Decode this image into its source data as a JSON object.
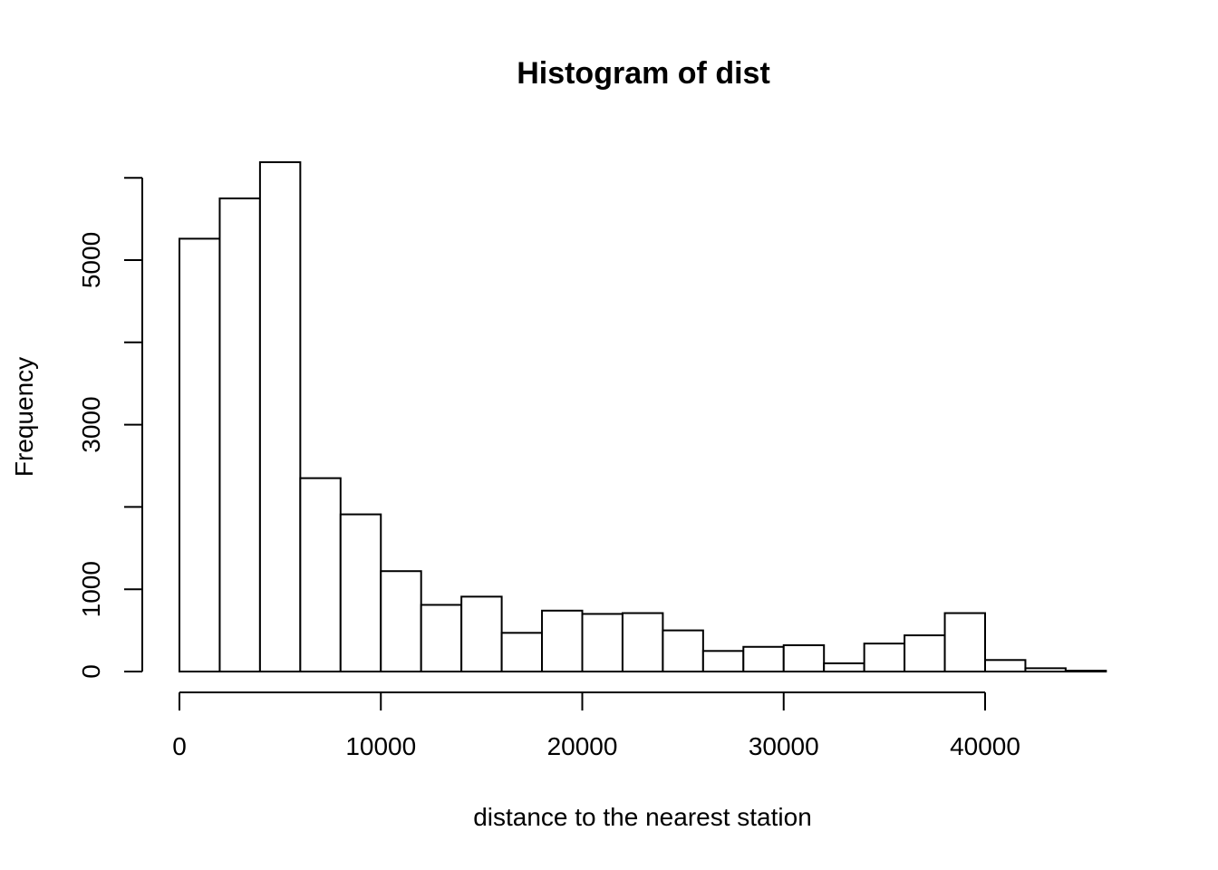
{
  "chart_data": {
    "type": "histogram",
    "title": "Histogram of dist",
    "xlabel": "distance to the nearest station",
    "ylabel": "Frequency",
    "bin_width": 2000,
    "bins": [
      {
        "start": 0,
        "end": 2000,
        "count": 5260
      },
      {
        "start": 2000,
        "end": 4000,
        "count": 5750
      },
      {
        "start": 4000,
        "end": 6000,
        "count": 6190
      },
      {
        "start": 6000,
        "end": 8000,
        "count": 2350
      },
      {
        "start": 8000,
        "end": 10000,
        "count": 1910
      },
      {
        "start": 10000,
        "end": 12000,
        "count": 1220
      },
      {
        "start": 12000,
        "end": 14000,
        "count": 810
      },
      {
        "start": 14000,
        "end": 16000,
        "count": 910
      },
      {
        "start": 16000,
        "end": 18000,
        "count": 470
      },
      {
        "start": 18000,
        "end": 20000,
        "count": 740
      },
      {
        "start": 20000,
        "end": 22000,
        "count": 700
      },
      {
        "start": 22000,
        "end": 24000,
        "count": 710
      },
      {
        "start": 24000,
        "end": 26000,
        "count": 500
      },
      {
        "start": 26000,
        "end": 28000,
        "count": 250
      },
      {
        "start": 28000,
        "end": 30000,
        "count": 300
      },
      {
        "start": 30000,
        "end": 32000,
        "count": 320
      },
      {
        "start": 32000,
        "end": 34000,
        "count": 100
      },
      {
        "start": 34000,
        "end": 36000,
        "count": 340
      },
      {
        "start": 36000,
        "end": 38000,
        "count": 440
      },
      {
        "start": 38000,
        "end": 40000,
        "count": 710
      },
      {
        "start": 40000,
        "end": 42000,
        "count": 140
      },
      {
        "start": 42000,
        "end": 44000,
        "count": 40
      },
      {
        "start": 44000,
        "end": 46000,
        "count": 10
      }
    ],
    "x_ticks": [
      0,
      10000,
      20000,
      30000,
      40000
    ],
    "x_tick_labels": [
      "0",
      "10000",
      "20000",
      "30000",
      "40000"
    ],
    "y_ticks": [
      0,
      1000,
      2000,
      3000,
      4000,
      5000,
      6000
    ],
    "y_tick_labels": [
      "0",
      "1000",
      "",
      "3000",
      "",
      "5000",
      ""
    ],
    "xlim": [
      0,
      46000
    ],
    "ylim": [
      0,
      6000
    ],
    "grid": false,
    "legend": "none"
  }
}
